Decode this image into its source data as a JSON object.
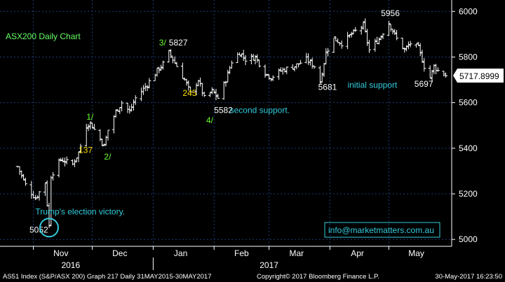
{
  "title": "ASX200 Daily Chart",
  "footer": {
    "left": "AS51 Index (S&P/ASX 200) Graph 217 Daily 31MAY2015-30MAY2017",
    "center": "Copyright© 2017 Bloomberg Finance L.P.",
    "right": "30-May-2017 16:23:50"
  },
  "last_price_label": "5717.8999",
  "email": "info@marketmatters.com.au",
  "colors": {
    "background": "#000000",
    "bars": "#ffffff",
    "title": "#66ff66",
    "wave": "#66ff33",
    "level_yellow": "#ffe000",
    "annotation": "#33ccdd",
    "price": "#ffffff",
    "grid": "#1e3a78"
  },
  "chart_data": {
    "type": "ohlc",
    "title": "ASX200 Daily Chart",
    "ylim": [
      4970,
      6050
    ],
    "y_ticks": [
      5000,
      5200,
      5400,
      5600,
      5800,
      6000
    ],
    "x_month_labels": [
      "Nov",
      "Dec",
      "Jan",
      "Feb",
      "Mar",
      "Apr",
      "May"
    ],
    "x_year_labels": [
      "2016",
      "2017"
    ],
    "grid": true,
    "last_price": 5717.8999,
    "price_path": [
      {
        "date": "2016-10-24",
        "close": 5320
      },
      {
        "date": "2016-10-28",
        "close": 5240
      },
      {
        "date": "2016-11-02",
        "close": 5180
      },
      {
        "date": "2016-11-07",
        "close": 5250
      },
      {
        "date": "2016-11-09",
        "close": 5060
      },
      {
        "date": "2016-11-10",
        "close": 5280
      },
      {
        "date": "2016-11-15",
        "close": 5350
      },
      {
        "date": "2016-11-21",
        "close": 5330
      },
      {
        "date": "2016-11-24",
        "close": 5380
      },
      {
        "date": "2016-11-28",
        "close": 5500
      },
      {
        "date": "2016-11-30",
        "close": 5510
      },
      {
        "date": "2016-12-05",
        "close": 5440
      },
      {
        "date": "2016-12-07",
        "close": 5410
      },
      {
        "date": "2016-12-09",
        "close": 5480
      },
      {
        "date": "2016-12-13",
        "close": 5560
      },
      {
        "date": "2016-12-16",
        "close": 5600
      },
      {
        "date": "2016-12-20",
        "close": 5560
      },
      {
        "date": "2016-12-23",
        "close": 5620
      },
      {
        "date": "2016-12-29",
        "close": 5680
      },
      {
        "date": "2017-01-03",
        "close": 5740
      },
      {
        "date": "2017-01-06",
        "close": 5770
      },
      {
        "date": "2017-01-09",
        "close": 5820
      },
      {
        "date": "2017-01-13",
        "close": 5760
      },
      {
        "date": "2017-01-17",
        "close": 5700
      },
      {
        "date": "2017-01-20",
        "close": 5640
      },
      {
        "date": "2017-01-24",
        "close": 5700
      },
      {
        "date": "2017-01-27",
        "close": 5620
      },
      {
        "date": "2017-01-31",
        "close": 5650
      },
      {
        "date": "2017-02-03",
        "close": 5620
      },
      {
        "date": "2017-02-07",
        "close": 5700
      },
      {
        "date": "2017-02-10",
        "close": 5780
      },
      {
        "date": "2017-02-14",
        "close": 5820
      },
      {
        "date": "2017-02-17",
        "close": 5790
      },
      {
        "date": "2017-02-22",
        "close": 5800
      },
      {
        "date": "2017-02-27",
        "close": 5730
      },
      {
        "date": "2017-03-02",
        "close": 5710
      },
      {
        "date": "2017-03-07",
        "close": 5740
      },
      {
        "date": "2017-03-14",
        "close": 5760
      },
      {
        "date": "2017-03-20",
        "close": 5790
      },
      {
        "date": "2017-03-24",
        "close": 5760
      },
      {
        "date": "2017-03-27",
        "close": 5690
      },
      {
        "date": "2017-03-30",
        "close": 5820
      },
      {
        "date": "2017-04-03",
        "close": 5880
      },
      {
        "date": "2017-04-07",
        "close": 5860
      },
      {
        "date": "2017-04-12",
        "close": 5900
      },
      {
        "date": "2017-04-18",
        "close": 5940
      },
      {
        "date": "2017-04-21",
        "close": 5830
      },
      {
        "date": "2017-04-26",
        "close": 5880
      },
      {
        "date": "2017-05-01",
        "close": 5950
      },
      {
        "date": "2017-05-05",
        "close": 5880
      },
      {
        "date": "2017-05-09",
        "close": 5830
      },
      {
        "date": "2017-05-12",
        "close": 5860
      },
      {
        "date": "2017-05-16",
        "close": 5840
      },
      {
        "date": "2017-05-19",
        "close": 5760
      },
      {
        "date": "2017-05-22",
        "close": 5710
      },
      {
        "date": "2017-05-24",
        "close": 5760
      },
      {
        "date": "2017-05-26",
        "close": 5740
      },
      {
        "date": "2017-05-30",
        "close": 5718
      }
    ],
    "annotations": [
      {
        "text": "1/",
        "kind": "wave",
        "date": "2016-11-28",
        "price": 5525
      },
      {
        "text": "137",
        "kind": "level",
        "date": "2016-11-24",
        "price": 5380
      },
      {
        "text": "2/",
        "kind": "wave",
        "date": "2016-12-07",
        "price": 5350
      },
      {
        "text": "3/",
        "kind": "wave",
        "date": "2017-01-04",
        "price": 5850
      },
      {
        "text": "5827",
        "kind": "price",
        "date": "2017-01-09",
        "price": 5850
      },
      {
        "text": "245",
        "kind": "level",
        "date": "2017-01-16",
        "price": 5630
      },
      {
        "text": "5582",
        "kind": "price",
        "date": "2017-02-01",
        "price": 5555
      },
      {
        "text": "4/",
        "kind": "wave",
        "date": "2017-01-28",
        "price": 5510
      },
      {
        "text": "second support.",
        "kind": "note",
        "date": "2017-02-09",
        "price": 5555
      },
      {
        "text": "5681",
        "kind": "price",
        "date": "2017-03-26",
        "price": 5655
      },
      {
        "text": "initial support",
        "kind": "note",
        "date": "2017-04-10",
        "price": 5665
      },
      {
        "text": "5956",
        "kind": "price",
        "date": "2017-04-27",
        "price": 5980
      },
      {
        "text": "5697",
        "kind": "price",
        "date": "2017-05-14",
        "price": 5670
      },
      {
        "text": "Trump's election victory.",
        "kind": "note",
        "date": "2016-11-02",
        "price": 5110
      },
      {
        "text": "5052",
        "kind": "price",
        "date": "2016-10-30",
        "price": 5030
      }
    ],
    "highlight": {
      "date": "2016-11-09",
      "price": 5052
    }
  }
}
